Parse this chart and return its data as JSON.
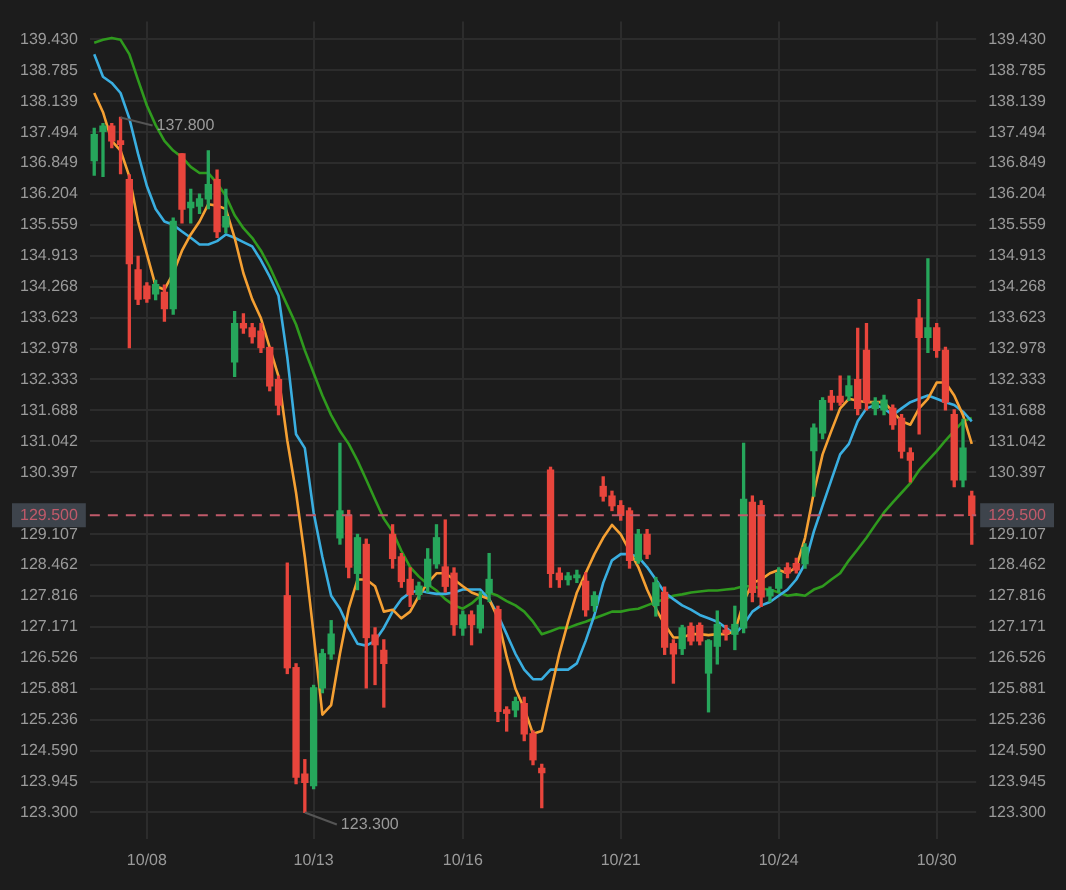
{
  "chart_data": {
    "type": "candlestick",
    "categories": [
      null,
      null,
      null,
      null,
      null,
      null,
      "10/08",
      null,
      null,
      null,
      null,
      null,
      null,
      null,
      null,
      null,
      null,
      null,
      null,
      null,
      null,
      null,
      null,
      null,
      null,
      "10/13",
      null,
      null,
      null,
      null,
      null,
      null,
      null,
      null,
      null,
      null,
      null,
      null,
      null,
      null,
      null,
      null,
      "10/16",
      null,
      null,
      null,
      null,
      null,
      null,
      null,
      null,
      null,
      null,
      null,
      null,
      null,
      null,
      null,
      null,
      null,
      "10/21",
      null,
      null,
      null,
      null,
      null,
      null,
      null,
      null,
      null,
      null,
      null,
      null,
      null,
      null,
      null,
      null,
      null,
      "10/24",
      null,
      null,
      null,
      null,
      null,
      null,
      null,
      null,
      null,
      null,
      null,
      null,
      null,
      null,
      null,
      null,
      null,
      "10/30",
      null,
      null,
      null,
      null
    ],
    "ohlc": [
      [
        136.9,
        137.57,
        136.6,
        137.44
      ],
      [
        137.51,
        137.67,
        136.57,
        137.62
      ],
      [
        137.62,
        137.67,
        137.17,
        137.31
      ],
      [
        137.31,
        137.8,
        136.63,
        137.24
      ],
      [
        136.5,
        136.6,
        133.0,
        134.75
      ],
      [
        134.62,
        134.9,
        133.9,
        134.01
      ],
      [
        134.28,
        134.35,
        133.95,
        134.02
      ],
      [
        134.12,
        134.4,
        134.0,
        134.31
      ],
      [
        134.15,
        134.3,
        133.55,
        133.81
      ],
      [
        133.81,
        135.7,
        133.7,
        135.63
      ],
      [
        137.04,
        137.04,
        135.6,
        135.89
      ],
      [
        135.92,
        136.3,
        135.6,
        136.03
      ],
      [
        135.95,
        136.2,
        135.8,
        136.1
      ],
      [
        136.1,
        137.1,
        135.9,
        136.4
      ],
      [
        136.5,
        136.7,
        135.3,
        135.42
      ],
      [
        135.52,
        136.3,
        135.4,
        135.73
      ],
      [
        132.7,
        133.75,
        132.4,
        133.5
      ],
      [
        133.5,
        133.7,
        133.3,
        133.41
      ],
      [
        133.41,
        133.5,
        133.1,
        133.23
      ],
      [
        133.34,
        133.5,
        132.9,
        133.0
      ],
      [
        133.0,
        133.0,
        132.1,
        132.2
      ],
      [
        132.33,
        132.4,
        131.6,
        131.8
      ],
      [
        127.82,
        128.5,
        126.2,
        126.32
      ],
      [
        126.32,
        126.4,
        123.9,
        124.04
      ],
      [
        124.1,
        124.4,
        123.3,
        123.93
      ],
      [
        123.86,
        125.95,
        123.8,
        125.9
      ],
      [
        125.9,
        126.7,
        125.8,
        126.61
      ],
      [
        126.61,
        127.3,
        126.5,
        127.02
      ],
      [
        129.03,
        131.0,
        128.9,
        129.59
      ],
      [
        129.5,
        129.6,
        128.2,
        128.42
      ],
      [
        128.29,
        129.1,
        127.95,
        129.03
      ],
      [
        128.89,
        129.0,
        125.9,
        126.95
      ],
      [
        127.0,
        127.15,
        125.97,
        126.8
      ],
      [
        126.68,
        126.9,
        125.5,
        126.41
      ],
      [
        129.1,
        129.3,
        128.4,
        128.6
      ],
      [
        128.63,
        128.7,
        128.0,
        128.12
      ],
      [
        128.16,
        128.4,
        127.6,
        127.85
      ],
      [
        127.85,
        128.1,
        127.75,
        128.02
      ],
      [
        128.02,
        128.8,
        127.9,
        128.58
      ],
      [
        128.49,
        129.3,
        128.4,
        129.03
      ],
      [
        128.42,
        129.4,
        127.9,
        128.02
      ],
      [
        128.29,
        128.4,
        127.0,
        127.22
      ],
      [
        127.15,
        127.5,
        127.0,
        127.42
      ],
      [
        127.42,
        127.5,
        126.8,
        127.22
      ],
      [
        127.15,
        127.9,
        127.05,
        127.62
      ],
      [
        127.89,
        128.7,
        127.7,
        128.16
      ],
      [
        127.53,
        127.6,
        125.2,
        125.41
      ],
      [
        125.44,
        125.5,
        125.0,
        125.37
      ],
      [
        125.44,
        125.7,
        125.3,
        125.61
      ],
      [
        125.57,
        125.7,
        124.8,
        124.94
      ],
      [
        124.94,
        125.0,
        124.3,
        124.4
      ],
      [
        124.22,
        124.3,
        123.4,
        124.13
      ],
      [
        130.44,
        130.5,
        128.0,
        128.29
      ],
      [
        128.29,
        128.4,
        128.0,
        128.16
      ],
      [
        128.16,
        128.3,
        128.05,
        128.23
      ],
      [
        128.2,
        128.35,
        128.1,
        128.25
      ],
      [
        128.12,
        128.3,
        127.4,
        127.53
      ],
      [
        127.62,
        127.9,
        127.5,
        127.82
      ],
      [
        130.1,
        130.3,
        129.8,
        129.9
      ],
      [
        129.9,
        130.0,
        129.6,
        129.7
      ],
      [
        129.7,
        129.8,
        129.4,
        129.5
      ],
      [
        129.59,
        129.65,
        128.4,
        128.56
      ],
      [
        128.56,
        129.2,
        128.5,
        129.1
      ],
      [
        129.1,
        129.2,
        128.6,
        128.69
      ],
      [
        127.62,
        128.2,
        127.4,
        128.09
      ],
      [
        127.89,
        128.0,
        126.6,
        126.75
      ],
      [
        126.82,
        126.9,
        126.0,
        126.61
      ],
      [
        126.72,
        127.2,
        126.6,
        127.15
      ],
      [
        127.18,
        127.25,
        126.8,
        126.88
      ],
      [
        127.2,
        127.25,
        126.8,
        126.88
      ],
      [
        126.21,
        126.9,
        125.4,
        126.88
      ],
      [
        126.77,
        127.5,
        126.4,
        127.22
      ],
      [
        127.1,
        127.2,
        126.9,
        127.04
      ],
      [
        127.02,
        127.6,
        126.7,
        127.22
      ],
      [
        127.15,
        131.0,
        127.05,
        129.83
      ],
      [
        129.77,
        129.9,
        127.7,
        127.89
      ],
      [
        129.7,
        129.8,
        127.6,
        127.8
      ],
      [
        127.82,
        128.0,
        127.7,
        127.95
      ],
      [
        127.98,
        128.4,
        127.9,
        128.29
      ],
      [
        128.4,
        128.5,
        128.2,
        128.3
      ],
      [
        128.49,
        128.6,
        128.3,
        128.36
      ],
      [
        128.49,
        128.9,
        128.4,
        128.83
      ],
      [
        130.85,
        131.4,
        129.9,
        131.32
      ],
      [
        131.22,
        131.95,
        131.1,
        131.89
      ],
      [
        131.98,
        132.1,
        131.7,
        131.86
      ],
      [
        131.98,
        132.4,
        131.8,
        131.86
      ],
      [
        131.99,
        132.4,
        131.9,
        132.2
      ],
      [
        132.33,
        133.4,
        131.6,
        131.73
      ],
      [
        132.94,
        133.5,
        131.7,
        131.86
      ],
      [
        131.73,
        131.95,
        131.6,
        131.86
      ],
      [
        131.7,
        132.0,
        131.6,
        131.9
      ],
      [
        131.73,
        131.8,
        131.3,
        131.39
      ],
      [
        131.52,
        131.6,
        130.7,
        130.84
      ],
      [
        130.8,
        130.9,
        130.2,
        130.65
      ],
      [
        133.61,
        134.0,
        131.2,
        133.21
      ],
      [
        133.21,
        134.85,
        132.9,
        133.41
      ],
      [
        133.41,
        133.5,
        132.8,
        132.94
      ],
      [
        132.94,
        133.0,
        131.7,
        131.86
      ],
      [
        131.6,
        131.7,
        130.1,
        130.24
      ],
      [
        130.24,
        131.5,
        130.1,
        130.9
      ],
      [
        129.9,
        130.0,
        128.9,
        129.5
      ]
    ],
    "colors": [
      "#26a65b",
      "#26a65b",
      "#e8453c",
      "#e8453c",
      "#e8453c",
      "#e8453c",
      "#e8453c",
      "#26a65b",
      "#e8453c",
      "#26a65b",
      "#e8453c",
      "#26a65b",
      "#26a65b",
      "#26a65b",
      "#e8453c",
      "#26a65b",
      "#26a65b",
      "#e8453c",
      "#e8453c",
      "#e8453c",
      "#e8453c",
      "#e8453c",
      "#e8453c",
      "#e8453c",
      "#e8453c",
      "#26a65b",
      "#26a65b",
      "#26a65b",
      "#26a65b",
      "#e8453c",
      "#26a65b",
      "#e8453c",
      "#e8453c",
      "#e8453c",
      "#e8453c",
      "#e8453c",
      "#e8453c",
      "#26a65b",
      "#26a65b",
      "#26a65b",
      "#e8453c",
      "#e8453c",
      "#26a65b",
      "#e8453c",
      "#26a65b",
      "#26a65b",
      "#e8453c",
      "#e8453c",
      "#26a65b",
      "#e8453c",
      "#e8453c",
      "#e8453c",
      "#e8453c",
      "#e8453c",
      "#26a65b",
      "#26a65b",
      "#e8453c",
      "#26a65b",
      "#e8453c",
      "#e8453c",
      "#e8453c",
      "#e8453c",
      "#26a65b",
      "#e8453c",
      "#26a65b",
      "#e8453c",
      "#e8453c",
      "#26a65b",
      "#e8453c",
      "#e8453c",
      "#26a65b",
      "#26a65b",
      "#e8453c",
      "#26a65b",
      "#26a65b",
      "#e8453c",
      "#e8453c",
      "#26a65b",
      "#26a65b",
      "#e8453c",
      "#e8453c",
      "#26a65b",
      "#26a65b",
      "#26a65b",
      "#e8453c",
      "#e8453c",
      "#26a65b",
      "#e8453c",
      "#e8453c",
      "#26a65b",
      "#26a65b",
      "#e8453c",
      "#e8453c",
      "#e8453c",
      "#e8453c",
      "#26a65b",
      "#e8453c",
      "#e8453c",
      "#e8453c",
      "#26a65b",
      "#e8453c"
    ],
    "series": [
      {
        "type": "line",
        "color": "#f5a033",
        "values": [
          138.31,
          137.91,
          137.31,
          137.11,
          136.57,
          135.63,
          134.95,
          134.28,
          134.21,
          134.55,
          135.02,
          135.36,
          135.63,
          135.99,
          135.96,
          135.89,
          135.29,
          134.55,
          134.01,
          133.61,
          133.0,
          132.4,
          131.06,
          129.97,
          128.63,
          127.02,
          125.34,
          125.54,
          126.61,
          127.55,
          128.16,
          128.16,
          128.02,
          127.49,
          127.53,
          127.35,
          127.49,
          127.82,
          128.09,
          128.29,
          128.29,
          128.16,
          128.02,
          127.89,
          127.82,
          127.75,
          127.35,
          126.55,
          125.88,
          125.47,
          124.94,
          125.0,
          125.81,
          126.61,
          127.28,
          127.89,
          128.29,
          128.69,
          129.03,
          129.3,
          129.1,
          128.76,
          128.42,
          127.95,
          127.55,
          127.22,
          126.95,
          126.95,
          127.02,
          127.02,
          127.0,
          127.02,
          127.02,
          127.08,
          127.69,
          128.09,
          128.16,
          128.29,
          128.36,
          128.29,
          128.42,
          129.03,
          129.97,
          130.77,
          131.26,
          131.73,
          131.93,
          131.89,
          131.86,
          131.86,
          131.86,
          131.66,
          131.46,
          131.39,
          131.73,
          131.93,
          132.27,
          132.27,
          132.0,
          131.59,
          130.99
        ]
      },
      {
        "type": "line",
        "color": "#3aaee0",
        "values": [
          139.12,
          138.65,
          138.52,
          138.31,
          137.78,
          137.04,
          136.37,
          135.89,
          135.63,
          135.56,
          135.42,
          135.29,
          135.15,
          135.15,
          135.22,
          135.36,
          135.29,
          135.2,
          135.11,
          134.82,
          134.48,
          134.08,
          132.8,
          131.19,
          130.9,
          129.56,
          128.63,
          127.82,
          127.55,
          127.15,
          126.82,
          126.78,
          126.88,
          127.15,
          127.49,
          127.75,
          127.89,
          127.93,
          127.89,
          127.86,
          127.86,
          127.89,
          127.95,
          127.95,
          127.95,
          127.75,
          127.42,
          127.02,
          126.61,
          126.28,
          126.08,
          126.08,
          126.28,
          126.28,
          126.28,
          126.41,
          126.88,
          127.42,
          128.09,
          128.56,
          128.69,
          128.69,
          128.63,
          128.42,
          128.16,
          127.89,
          127.75,
          127.62,
          127.53,
          127.42,
          127.35,
          127.28,
          127.15,
          127.02,
          127.22,
          127.49,
          127.62,
          127.69,
          127.82,
          127.95,
          128.16,
          128.49,
          129.16,
          129.7,
          130.24,
          130.77,
          130.99,
          131.46,
          131.73,
          131.8,
          131.73,
          131.59,
          131.73,
          131.86,
          131.93,
          132.0,
          131.93,
          131.86,
          131.8,
          131.66,
          131.46
        ]
      },
      {
        "type": "line",
        "color": "#2f9a1e",
        "values": [
          139.36,
          139.42,
          139.46,
          139.42,
          139.12,
          138.58,
          138.05,
          137.64,
          137.31,
          137.11,
          136.97,
          136.77,
          136.64,
          136.64,
          136.43,
          136.16,
          135.76,
          135.49,
          135.29,
          135.02,
          134.68,
          134.28,
          133.88,
          133.48,
          132.94,
          132.47,
          132.0,
          131.59,
          131.26,
          130.99,
          130.64,
          130.24,
          129.83,
          129.43,
          129.16,
          128.76,
          128.42,
          128.22,
          128.06,
          127.93,
          127.75,
          127.62,
          127.55,
          127.66,
          127.82,
          127.89,
          127.82,
          127.71,
          127.62,
          127.49,
          127.28,
          127.02,
          127.08,
          127.15,
          127.15,
          127.22,
          127.28,
          127.35,
          127.42,
          127.49,
          127.49,
          127.53,
          127.55,
          127.62,
          127.69,
          127.75,
          127.82,
          127.85,
          127.89,
          127.91,
          127.93,
          127.93,
          127.95,
          127.97,
          128.02,
          128.02,
          127.97,
          127.95,
          127.89,
          127.82,
          127.85,
          127.82,
          127.95,
          128.02,
          128.16,
          128.29,
          128.56,
          128.79,
          129.03,
          129.3,
          129.56,
          129.77,
          129.97,
          130.17,
          130.44,
          130.64,
          130.84,
          131.06,
          131.26,
          131.46,
          131.53
        ]
      }
    ],
    "ylim": [
      122.75,
      139.8
    ],
    "yticks": [
      {
        "value": 139.43,
        "label": "139.430"
      },
      138.785,
      138.139,
      137.494,
      136.849,
      136.204,
      135.559,
      134.913,
      134.268,
      133.623,
      132.978,
      132.333,
      131.688,
      131.042,
      130.397,
      129.107,
      128.462,
      127.816,
      127.171,
      126.526,
      125.881,
      125.236,
      {
        "value": 124.59,
        "label": "124.590"
      },
      123.945,
      {
        "value": 123.3,
        "label": "123.300"
      }
    ],
    "y2lim": [
      122.75,
      139.8
    ],
    "y2ticks": [
      {
        "value": 139.43,
        "label": "139.430"
      },
      138.785,
      138.139,
      137.494,
      136.849,
      136.204,
      135.559,
      134.913,
      134.268,
      133.623,
      132.978,
      132.333,
      131.688,
      131.042,
      130.397,
      129.107,
      128.462,
      127.816,
      127.171,
      126.526,
      125.881,
      125.236,
      {
        "value": 124.59,
        "label": "124.590"
      },
      123.945,
      {
        "value": 123.3,
        "label": "123.300"
      }
    ],
    "ref_lines": [
      {
        "axis": "y",
        "value": 129.5,
        "label": "129.500",
        "color": "#c05a6a",
        "line_style": "dashed"
      }
    ],
    "annotations": [
      "137.800",
      "123.300"
    ],
    "grid": true,
    "legend": false,
    "marker": "none"
  }
}
